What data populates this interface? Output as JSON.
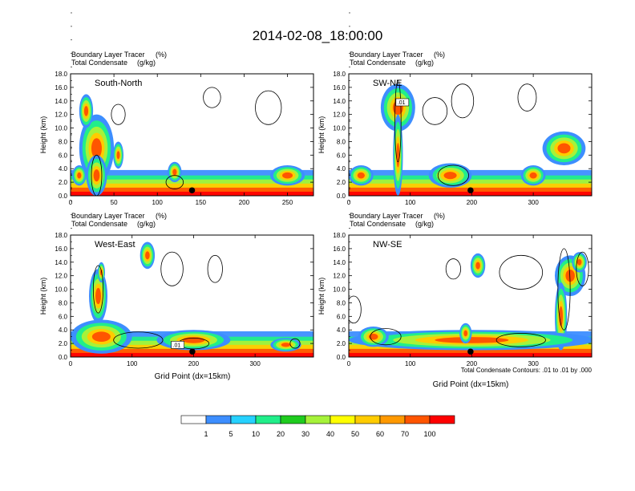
{
  "figure": {
    "title": "2014-02-08_18:00:00",
    "x_axis_title": "Grid Point (dx=15km)",
    "contour_note": "Total Condensate Contours: .01 to .01 by .000"
  },
  "colorbar": {
    "colors": [
      "#ffffff",
      "#3d8eff",
      "#26d1ff",
      "#21ee8a",
      "#1fcc1f",
      "#a6f23a",
      "#ffff00",
      "#ffcc00",
      "#ff9900",
      "#ff5500",
      "#ff0000"
    ],
    "labels": [
      "1",
      "5",
      "10",
      "20",
      "30",
      "40",
      "50",
      "60",
      "70",
      "100"
    ]
  },
  "chart_data": [
    {
      "type": "heatmap",
      "panel": "South-North",
      "line1": "Boundary Layer Tracer",
      "unit1": "(%)",
      "line2": "Total Condensate",
      "unit2": "(g/kg)",
      "ylabel": "Height (km)",
      "ylim": [
        0,
        18
      ],
      "yticks": [
        "0.0",
        "2.0",
        "4.0",
        "6.0",
        "8.0",
        "10.0",
        "12.0",
        "14.0",
        "16.0",
        "18.0"
      ],
      "xlim": [
        0,
        280
      ],
      "xticks": [
        {
          "v": 0,
          "l": "0"
        },
        {
          "v": 50,
          "l": "50"
        },
        {
          "v": 100,
          "l": "100"
        },
        {
          "v": 150,
          "l": "150"
        },
        {
          "v": 200,
          "l": "200"
        },
        {
          "v": 250,
          "l": "250"
        }
      ],
      "marker_x": 140,
      "blobs": [
        {
          "x": 30,
          "y": 7,
          "rx": 20,
          "ry": 5
        },
        {
          "x": 18,
          "y": 12.5,
          "rx": 8,
          "ry": 2.5
        },
        {
          "x": 30,
          "y": 3,
          "rx": 12,
          "ry": 3
        },
        {
          "x": 10,
          "y": 3,
          "rx": 8,
          "ry": 1.5
        },
        {
          "x": 55,
          "y": 6,
          "rx": 6,
          "ry": 2
        },
        {
          "x": 120,
          "y": 3.5,
          "rx": 8,
          "ry": 1.5
        },
        {
          "x": 250,
          "y": 3,
          "rx": 20,
          "ry": 1.5
        }
      ],
      "contours": [
        {
          "x": 163,
          "y": 14.5,
          "rx": 10,
          "ry": 1.5
        },
        {
          "x": 228,
          "y": 13,
          "rx": 15,
          "ry": 2.5
        },
        {
          "x": 55,
          "y": 12,
          "rx": 8,
          "ry": 1.5
        },
        {
          "x": 30,
          "y": 3,
          "rx": 6,
          "ry": 3
        },
        {
          "x": 120,
          "y": 2,
          "rx": 10,
          "ry": 1
        }
      ]
    },
    {
      "type": "heatmap",
      "panel": "SW-NE",
      "line1": "Boundary Layer Tracer",
      "unit1": "(%)",
      "line2": "Total Condensate",
      "unit2": "(g/kg)",
      "ylabel": "Height (km)",
      "ylim": [
        0,
        18
      ],
      "yticks": [
        "0.0",
        "2.0",
        "4.0",
        "6.0",
        "8.0",
        "10.0",
        "12.0",
        "14.0",
        "16.0",
        "18.0"
      ],
      "xlim": [
        0,
        395
      ],
      "xticks": [
        {
          "v": 0,
          "l": "0"
        },
        {
          "v": 100,
          "l": "100"
        },
        {
          "v": 200,
          "l": "200"
        },
        {
          "v": 300,
          "l": "300"
        }
      ],
      "marker_x": 198,
      "inline_label": ".01",
      "blobs": [
        {
          "x": 80,
          "y": 13,
          "rx": 28,
          "ry": 3.5
        },
        {
          "x": 80,
          "y": 6,
          "rx": 8,
          "ry": 6
        },
        {
          "x": 165,
          "y": 3,
          "rx": 35,
          "ry": 1.8
        },
        {
          "x": 350,
          "y": 7,
          "rx": 35,
          "ry": 2.5
        },
        {
          "x": 20,
          "y": 3,
          "rx": 20,
          "ry": 1.5
        },
        {
          "x": 300,
          "y": 3,
          "rx": 20,
          "ry": 1.5
        }
      ],
      "contours": [
        {
          "x": 140,
          "y": 12.5,
          "rx": 20,
          "ry": 2
        },
        {
          "x": 185,
          "y": 14,
          "rx": 18,
          "ry": 2.5
        },
        {
          "x": 290,
          "y": 14.5,
          "rx": 15,
          "ry": 2
        },
        {
          "x": 80,
          "y": 11,
          "rx": 5,
          "ry": 6
        },
        {
          "x": 170,
          "y": 3,
          "rx": 25,
          "ry": 1.5
        }
      ]
    },
    {
      "type": "heatmap",
      "panel": "West-East",
      "line1": "Boundary Layer Tracer",
      "unit1": "(%)",
      "line2": "Total Condensate",
      "unit2": "(g/kg)",
      "ylabel": "Height (km)",
      "ylim": [
        0,
        18
      ],
      "yticks": [
        "0.0",
        "2.0",
        "4.0",
        "6.0",
        "8.0",
        "10.0",
        "12.0",
        "14.0",
        "16.0",
        "18.0"
      ],
      "xlim": [
        0,
        395
      ],
      "xticks": [
        {
          "v": 0,
          "l": "0"
        },
        {
          "v": 100,
          "l": "100"
        },
        {
          "v": 200,
          "l": "200"
        },
        {
          "v": 300,
          "l": "300"
        }
      ],
      "marker_x": 198,
      "inline_label": ".01",
      "blobs": [
        {
          "x": 45,
          "y": 9,
          "rx": 15,
          "ry": 4
        },
        {
          "x": 50,
          "y": 12.5,
          "rx": 6,
          "ry": 1.5
        },
        {
          "x": 125,
          "y": 15,
          "rx": 12,
          "ry": 2
        },
        {
          "x": 50,
          "y": 3,
          "rx": 50,
          "ry": 2.5
        },
        {
          "x": 200,
          "y": 2.5,
          "rx": 60,
          "ry": 1.5
        },
        {
          "x": 350,
          "y": 1.8,
          "rx": 25,
          "ry": 1
        }
      ],
      "contours": [
        {
          "x": 165,
          "y": 13,
          "rx": 18,
          "ry": 2.5
        },
        {
          "x": 235,
          "y": 13,
          "rx": 12,
          "ry": 2
        },
        {
          "x": 45,
          "y": 10,
          "rx": 8,
          "ry": 3.5
        },
        {
          "x": 110,
          "y": 2.5,
          "rx": 40,
          "ry": 1.2
        },
        {
          "x": 200,
          "y": 2,
          "rx": 25,
          "ry": 0.8
        },
        {
          "x": 365,
          "y": 2,
          "rx": 8,
          "ry": 0.7
        }
      ]
    },
    {
      "type": "heatmap",
      "panel": "NW-SE",
      "line1": "Boundary Layer Tracer",
      "unit1": "(%)",
      "line2": "Total Condensate",
      "unit2": "(g/kg)",
      "ylabel": "Height (km)",
      "ylim": [
        0,
        18
      ],
      "yticks": [
        "0.0",
        "2.0",
        "4.0",
        "6.0",
        "8.0",
        "10.0",
        "12.0",
        "14.0",
        "16.0",
        "18.0"
      ],
      "xlim": [
        0,
        395
      ],
      "xticks": [
        {
          "v": 0,
          "l": "0"
        },
        {
          "v": 100,
          "l": "100"
        },
        {
          "v": 200,
          "l": "200"
        },
        {
          "v": 300,
          "l": "300"
        }
      ],
      "marker_x": 198,
      "blobs": [
        {
          "x": 360,
          "y": 12,
          "rx": 25,
          "ry": 3
        },
        {
          "x": 375,
          "y": 14,
          "rx": 12,
          "ry": 1.5
        },
        {
          "x": 210,
          "y": 13.5,
          "rx": 12,
          "ry": 1.8
        },
        {
          "x": 345,
          "y": 6,
          "rx": 10,
          "ry": 5
        },
        {
          "x": 200,
          "y": 2.5,
          "rx": 200,
          "ry": 1.5
        },
        {
          "x": 40,
          "y": 3,
          "rx": 25,
          "ry": 1.5
        },
        {
          "x": 190,
          "y": 3.5,
          "rx": 10,
          "ry": 1.5
        }
      ],
      "contours": [
        {
          "x": 280,
          "y": 12.5,
          "rx": 35,
          "ry": 2.5
        },
        {
          "x": 170,
          "y": 13,
          "rx": 12,
          "ry": 1.5
        },
        {
          "x": 8,
          "y": 7,
          "rx": 12,
          "ry": 2
        },
        {
          "x": 350,
          "y": 10,
          "rx": 10,
          "ry": 6
        },
        {
          "x": 380,
          "y": 13,
          "rx": 10,
          "ry": 2.5
        },
        {
          "x": 60,
          "y": 3,
          "rx": 25,
          "ry": 1.2
        },
        {
          "x": 280,
          "y": 2.5,
          "rx": 40,
          "ry": 1
        }
      ]
    }
  ]
}
